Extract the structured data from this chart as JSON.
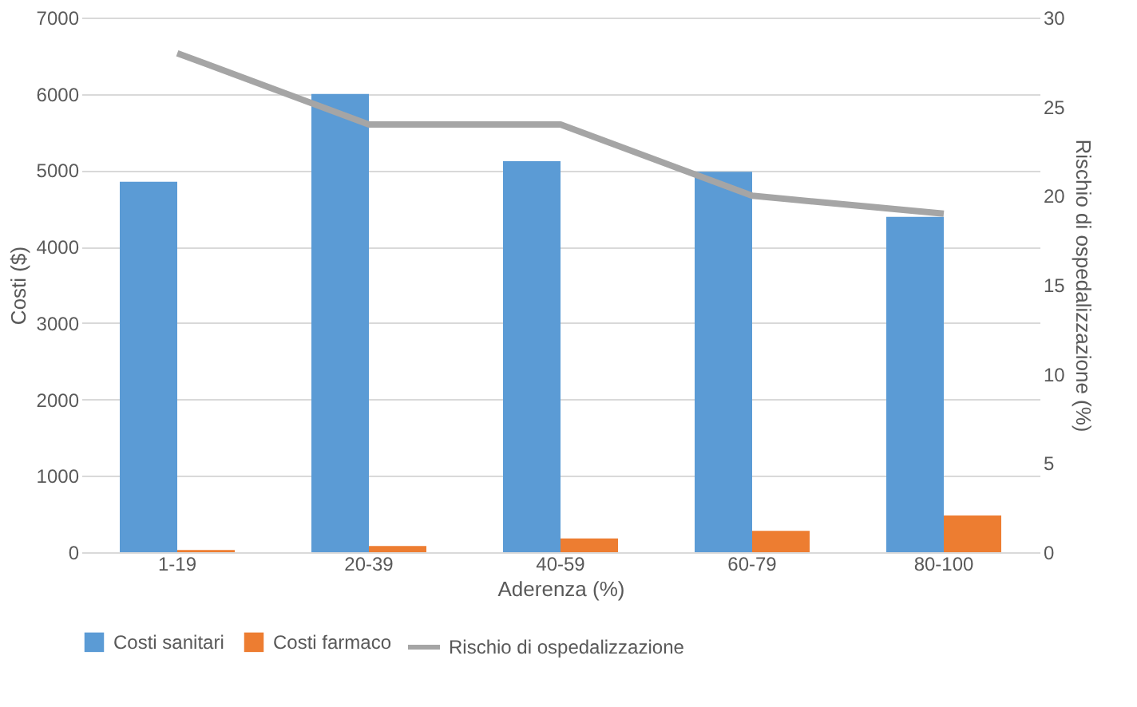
{
  "chart_data": {
    "type": "bar",
    "xlabel": "Aderenza (%)",
    "ylabel": "Costi ($)",
    "y2label": "Rischio di ospedalizzazione (%)",
    "categories": [
      "1-19",
      "20-39",
      "40-59",
      "60-79",
      "80-100"
    ],
    "series": [
      {
        "name": "Costi sanitari",
        "color": "#5b9bd5",
        "values": [
          4850,
          6000,
          5120,
          4980,
          4390
        ]
      },
      {
        "name": "Costi farmaco",
        "color": "#ed7d31",
        "values": [
          30,
          80,
          180,
          280,
          480
        ]
      },
      {
        "name": "Rischio di ospedalizzazione",
        "color": "#a5a5a5",
        "type": "line",
        "axis": "y2",
        "values": [
          28,
          24,
          24,
          20,
          19
        ]
      }
    ],
    "ylim": [
      0,
      7000
    ],
    "yticks": [
      0,
      1000,
      2000,
      3000,
      4000,
      5000,
      6000,
      7000
    ],
    "y2lim": [
      0,
      30
    ],
    "y2ticks": [
      0,
      5,
      10,
      15,
      20,
      25,
      30
    ],
    "grid": "y",
    "legend": "bottom",
    "marker": "none",
    "line_style": "solid"
  }
}
